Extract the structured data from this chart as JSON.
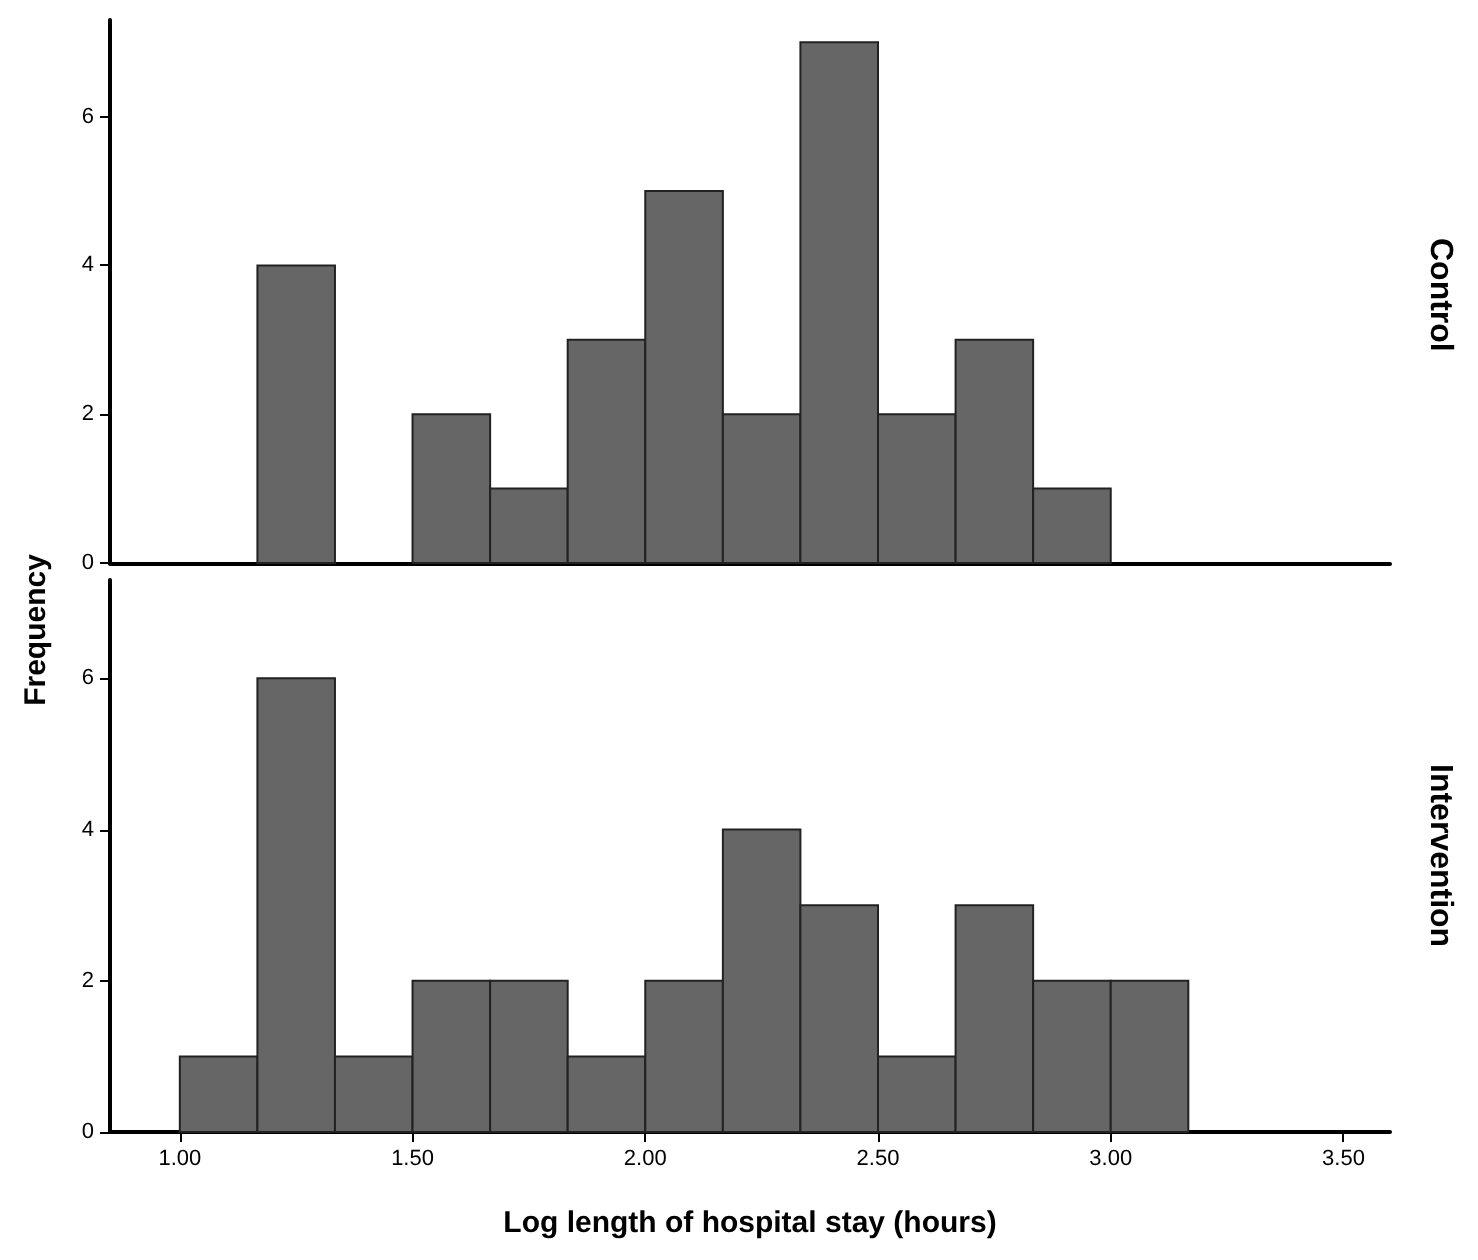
{
  "chart_data": [
    {
      "type": "histogram",
      "annotations": [
        "Control"
      ],
      "ylabel": "Frequency",
      "color": "#666666",
      "bins": [
        1,
        1.1667,
        1.3333,
        1.5,
        1.6667,
        1.8333,
        2,
        2.1667,
        2.3333,
        2.5,
        2.6667,
        2.8333,
        3,
        3.1667
      ],
      "values": [
        0,
        4,
        0,
        2,
        1,
        3,
        5,
        2,
        7,
        2,
        3,
        1,
        0
      ],
      "xlim": [
        0.85,
        3.6
      ],
      "ylim": [
        0,
        7.3
      ],
      "yticks": [
        0,
        2,
        4,
        6
      ],
      "tick_labels": "y"
    },
    {
      "type": "histogram",
      "annotations": [
        "Intervention"
      ],
      "xlabel": "Log length of hospital stay (hours)",
      "color": "#666666",
      "bins": [
        1,
        1.1667,
        1.3333,
        1.5,
        1.6667,
        1.8333,
        2,
        2.1667,
        2.3333,
        2.5,
        2.6667,
        2.8333,
        3,
        3.1667
      ],
      "values": [
        1,
        6,
        1,
        2,
        2,
        1,
        2,
        4,
        3,
        1,
        3,
        2,
        2
      ],
      "xlim": [
        0.85,
        3.6
      ],
      "ylim": [
        0,
        7.3
      ],
      "yticks": [
        0,
        2,
        4,
        6
      ],
      "xticks": [
        {
          "value": 1,
          "label": "1.00"
        },
        {
          "value": 1.5,
          "label": "1.50"
        },
        {
          "value": 2,
          "label": "2.00"
        },
        {
          "value": 2.5,
          "label": "2.50"
        },
        {
          "value": 3,
          "label": "3.00"
        },
        {
          "value": 3.5,
          "label": "3.50"
        }
      ]
    }
  ]
}
